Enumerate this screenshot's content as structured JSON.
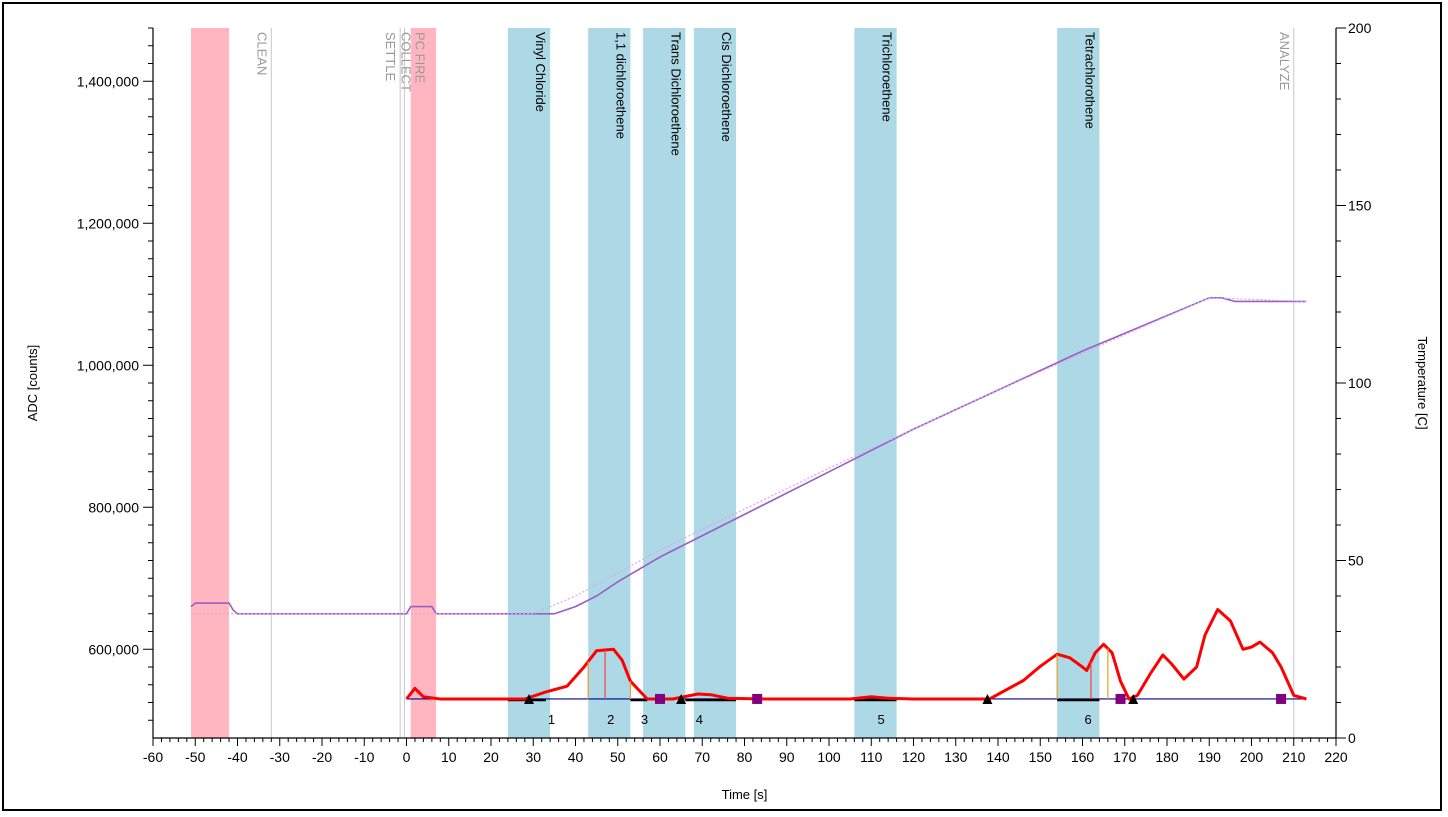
{
  "chart_data": {
    "type": "line",
    "xlabel": "Time [s]",
    "ylabel_left": "ADC [counts]",
    "ylabel_right": "Temperature [C]",
    "xlim": [
      -60,
      220
    ],
    "ylim_left": [
      475000,
      1475000
    ],
    "ylim_right": [
      0,
      200
    ],
    "x_ticks": [
      -60,
      -50,
      -40,
      -30,
      -20,
      -10,
      0,
      10,
      20,
      30,
      40,
      50,
      60,
      70,
      80,
      90,
      100,
      110,
      120,
      130,
      140,
      150,
      160,
      170,
      180,
      190,
      200,
      210,
      220
    ],
    "y_left_ticks": [
      {
        "value": 600000,
        "label": "600,000"
      },
      {
        "value": 800000,
        "label": "800,000"
      },
      {
        "value": 1000000,
        "label": "1,000,000"
      },
      {
        "value": 1200000,
        "label": "1,200,000"
      },
      {
        "value": 1400000,
        "label": "1,400,000"
      }
    ],
    "y_right_ticks": [
      {
        "value": 0,
        "label": "0"
      },
      {
        "value": 50,
        "label": "50"
      },
      {
        "value": 100,
        "label": "100"
      },
      {
        "value": 150,
        "label": "150"
      },
      {
        "value": 200,
        "label": "200"
      }
    ],
    "event_bands": [
      {
        "start": -51,
        "end": -42,
        "color": "#ffb6c1",
        "label": ""
      },
      {
        "start": 1,
        "end": 7,
        "color": "#ffb6c1",
        "label": "PC FIRE",
        "label_color": "#999999"
      }
    ],
    "event_lines": [
      {
        "x": -32,
        "label": "CLEAN"
      },
      {
        "x": -1.5,
        "label": "SETTLE"
      },
      {
        "x": -0.5,
        "label": "COLLECT"
      },
      {
        "x": 210,
        "label": "ANALYZE"
      }
    ],
    "compound_windows": [
      {
        "start": 24,
        "end": 34,
        "label": "Vinyl Chloride"
      },
      {
        "start": 43,
        "end": 53,
        "label": "1,1 dichloroethene"
      },
      {
        "start": 56,
        "end": 66,
        "label": "Trans Dichloroethene"
      },
      {
        "start": 68,
        "end": 78,
        "label": "Cis Dichloroethene"
      },
      {
        "start": 106,
        "end": 116,
        "label": "Trichloroethene"
      },
      {
        "start": 154,
        "end": 164,
        "label": "Tetrachlorothene"
      }
    ],
    "band_color": "#add8e6",
    "series": [
      {
        "name": "ADC",
        "color": "#ff0000",
        "points": [
          [
            0,
            530000
          ],
          [
            2,
            545000
          ],
          [
            4,
            533000
          ],
          [
            8,
            530000
          ],
          [
            28,
            530000
          ],
          [
            33,
            540000
          ],
          [
            38,
            548000
          ],
          [
            42,
            575000
          ],
          [
            45,
            598000
          ],
          [
            49,
            600000
          ],
          [
            51,
            585000
          ],
          [
            53,
            555000
          ],
          [
            57,
            530000
          ],
          [
            63,
            530000
          ],
          [
            69,
            537000
          ],
          [
            72,
            536000
          ],
          [
            76,
            531000
          ],
          [
            85,
            530000
          ],
          [
            105,
            530000
          ],
          [
            110,
            533000
          ],
          [
            114,
            531000
          ],
          [
            120,
            530000
          ],
          [
            135,
            530000
          ],
          [
            138,
            530000
          ],
          [
            142,
            543000
          ],
          [
            146,
            556000
          ],
          [
            150,
            576000
          ],
          [
            154,
            593000
          ],
          [
            157,
            588000
          ],
          [
            160,
            575000
          ],
          [
            161,
            570000
          ],
          [
            163,
            595000
          ],
          [
            165,
            607000
          ],
          [
            167,
            595000
          ],
          [
            169,
            555000
          ],
          [
            171,
            530000
          ],
          [
            173,
            535000
          ],
          [
            176,
            565000
          ],
          [
            179,
            592000
          ],
          [
            181,
            580000
          ],
          [
            184,
            558000
          ],
          [
            187,
            575000
          ],
          [
            189,
            620000
          ],
          [
            192,
            656000
          ],
          [
            195,
            640000
          ],
          [
            198,
            600000
          ],
          [
            200,
            603000
          ],
          [
            202,
            610000
          ],
          [
            205,
            595000
          ],
          [
            207,
            575000
          ],
          [
            210,
            535000
          ],
          [
            213,
            530000
          ]
        ]
      },
      {
        "name": "Temperature",
        "axis": "right",
        "color": "#9a5ec4",
        "points": [
          [
            -51,
            37
          ],
          [
            -50,
            38
          ],
          [
            -42,
            38
          ],
          [
            -41,
            36
          ],
          [
            -40,
            35
          ],
          [
            -10,
            35
          ],
          [
            0,
            35
          ],
          [
            1,
            37
          ],
          [
            6,
            37
          ],
          [
            7,
            35
          ],
          [
            10,
            35
          ],
          [
            30,
            35
          ],
          [
            35,
            35
          ],
          [
            40,
            37
          ],
          [
            45,
            40
          ],
          [
            50,
            44
          ],
          [
            60,
            51
          ],
          [
            80,
            63
          ],
          [
            100,
            75
          ],
          [
            120,
            87
          ],
          [
            140,
            98
          ],
          [
            160,
            109
          ],
          [
            180,
            119
          ],
          [
            190,
            124
          ],
          [
            193,
            124
          ],
          [
            196,
            123
          ],
          [
            200,
            123
          ],
          [
            213,
            123
          ]
        ]
      },
      {
        "name": "Temperature setpoint",
        "axis": "right",
        "color": "#d9a6e8",
        "points": [
          [
            -51,
            35
          ],
          [
            30,
            35
          ],
          [
            40,
            40
          ],
          [
            60,
            53
          ],
          [
            100,
            76
          ],
          [
            140,
            98
          ],
          [
            190,
            124
          ],
          [
            213,
            123
          ]
        ]
      }
    ],
    "baseline": {
      "start": 0,
      "end": 213,
      "value": 530000,
      "color": "#00008b"
    },
    "peaks": [
      {
        "label": "1",
        "x": 33
      },
      {
        "label": "2",
        "x": 47
      },
      {
        "label": "3",
        "x": 55
      },
      {
        "label": "4",
        "x": 68
      },
      {
        "label": "5",
        "x": 111
      },
      {
        "label": "6",
        "x": 160
      }
    ],
    "triangle_markers": [
      29,
      65,
      137.5,
      172
    ],
    "square_markers": [
      60,
      83,
      169,
      207
    ],
    "integration_segments": [
      [
        24,
        33
      ],
      [
        53,
        57
      ],
      [
        66,
        78
      ],
      [
        106,
        116
      ],
      [
        154,
        164
      ]
    ],
    "peak_bounds": [
      {
        "left": 43,
        "apex": 47,
        "right": 53
      },
      {
        "left": 154,
        "apex": 162,
        "right": 166
      }
    ]
  }
}
